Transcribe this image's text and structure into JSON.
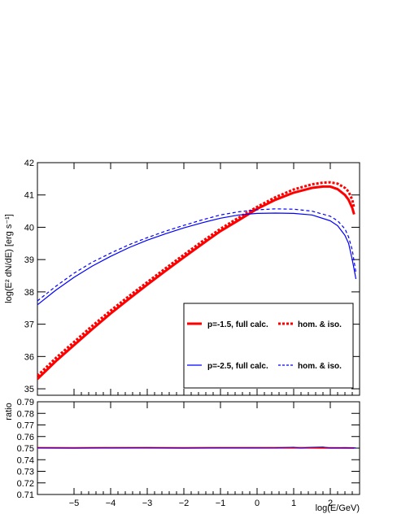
{
  "chart_data": [
    {
      "type": "line",
      "xlabel": "log(E/GeV)",
      "ylabel": "log(E² dN/dE)  [erg s⁻¹]",
      "xlim": [
        -6.0,
        2.8
      ],
      "ylim": [
        34.8,
        42.0
      ],
      "x_ticks": [
        -5,
        -4,
        -3,
        -2,
        -1,
        0,
        1,
        2
      ],
      "y_ticks": [
        35,
        36,
        37,
        38,
        39,
        40,
        41,
        42
      ],
      "legend_position": "bottom-right",
      "series": [
        {
          "name": "p=-1.5, full calc.",
          "color": "#ff0000",
          "style": "solid",
          "width": 3,
          "x": [
            -6.0,
            -5.5,
            -5.0,
            -4.5,
            -4.0,
            -3.5,
            -3.0,
            -2.5,
            -2.0,
            -1.5,
            -1.0,
            -0.5,
            0.0,
            0.5,
            1.0,
            1.5,
            1.8,
            2.0,
            2.2,
            2.4,
            2.5,
            2.6,
            2.65
          ],
          "y": [
            35.3,
            35.85,
            36.35,
            36.85,
            37.33,
            37.78,
            38.22,
            38.65,
            39.07,
            39.48,
            39.88,
            40.22,
            40.57,
            40.85,
            41.07,
            41.22,
            41.26,
            41.26,
            41.18,
            41.0,
            40.85,
            40.6,
            40.4
          ]
        },
        {
          "name": "hom. & iso.",
          "color": "#ff0000",
          "style": "dotted",
          "width": 3,
          "x": [
            -6.0,
            -5.5,
            -5.0,
            -4.5,
            -4.0,
            -3.5,
            -3.0,
            -2.5,
            -2.0,
            -1.5,
            -1.0,
            -0.5,
            0.0,
            0.5,
            1.0,
            1.5,
            1.8,
            2.0,
            2.2,
            2.4,
            2.5,
            2.6,
            2.65
          ],
          "y": [
            35.4,
            35.95,
            36.45,
            36.95,
            37.42,
            37.87,
            38.3,
            38.73,
            39.15,
            39.56,
            39.95,
            40.3,
            40.63,
            40.93,
            41.17,
            41.33,
            41.38,
            41.39,
            41.35,
            41.22,
            41.1,
            40.85,
            40.6
          ]
        },
        {
          "name": "p=-2.5, full calc.",
          "color": "#0000ff",
          "style": "solid",
          "width": 1.2,
          "x": [
            -6.0,
            -5.5,
            -5.0,
            -4.5,
            -4.0,
            -3.5,
            -3.0,
            -2.5,
            -2.0,
            -1.5,
            -1.0,
            -0.5,
            0.0,
            0.5,
            1.0,
            1.5,
            2.0,
            2.2,
            2.4,
            2.5,
            2.6,
            2.7
          ],
          "y": [
            37.6,
            38.05,
            38.45,
            38.8,
            39.1,
            39.37,
            39.6,
            39.8,
            39.98,
            40.14,
            40.28,
            40.38,
            40.43,
            40.44,
            40.43,
            40.38,
            40.2,
            40.05,
            39.75,
            39.5,
            39.0,
            38.4
          ]
        },
        {
          "name": "hom. & iso.",
          "color": "#0000ff",
          "style": "dashed",
          "width": 1.2,
          "x": [
            -6.0,
            -5.5,
            -5.0,
            -4.5,
            -4.0,
            -3.5,
            -3.0,
            -2.5,
            -2.0,
            -1.5,
            -1.0,
            -0.5,
            0.0,
            0.5,
            1.0,
            1.5,
            2.0,
            2.2,
            2.4,
            2.5,
            2.6,
            2.7
          ],
          "y": [
            37.72,
            38.17,
            38.58,
            38.92,
            39.2,
            39.46,
            39.68,
            39.88,
            40.06,
            40.23,
            40.38,
            40.48,
            40.54,
            40.57,
            40.56,
            40.5,
            40.34,
            40.2,
            39.95,
            39.7,
            39.3,
            38.6
          ]
        }
      ]
    },
    {
      "type": "line",
      "xlabel": "log(E/GeV)",
      "ylabel": "ratio",
      "xlim": [
        -6.0,
        2.8
      ],
      "ylim": [
        0.71,
        0.79
      ],
      "x_ticks": [
        -5,
        -4,
        -3,
        -2,
        -1,
        0,
        1,
        2
      ],
      "y_ticks": [
        0.71,
        0.72,
        0.73,
        0.74,
        0.75,
        0.76,
        0.77,
        0.78,
        0.79
      ],
      "series": [
        {
          "color": "#ff0000",
          "style": "solid",
          "width": 2,
          "x": [
            -6.0,
            -5.0,
            -4.0,
            -3.0,
            -2.0,
            -1.0,
            0.0,
            1.0,
            2.0,
            2.65
          ],
          "y": [
            0.7503,
            0.7502,
            0.7503,
            0.7503,
            0.7502,
            0.7503,
            0.7503,
            0.7503,
            0.7502,
            0.7501
          ]
        },
        {
          "color": "#0000ff",
          "style": "solid",
          "width": 1,
          "x": [
            -6.0,
            -5.0,
            -4.5,
            -4.0,
            -3.0,
            -2.0,
            -1.0,
            0.0,
            0.5,
            1.0,
            1.2,
            1.4,
            1.8,
            2.0,
            2.4,
            2.7
          ],
          "y": [
            0.7503,
            0.75,
            0.7503,
            0.7502,
            0.7504,
            0.7501,
            0.7503,
            0.7502,
            0.7503,
            0.7508,
            0.75,
            0.7506,
            0.751,
            0.7502,
            0.7504,
            0.7503
          ]
        }
      ]
    }
  ],
  "legend": {
    "row1_label": "p=-1.5, full calc.",
    "row1_alt_label": "hom. & iso.",
    "row2_label": "p=-2.5, full calc.",
    "row2_alt_label": "hom. & iso."
  }
}
